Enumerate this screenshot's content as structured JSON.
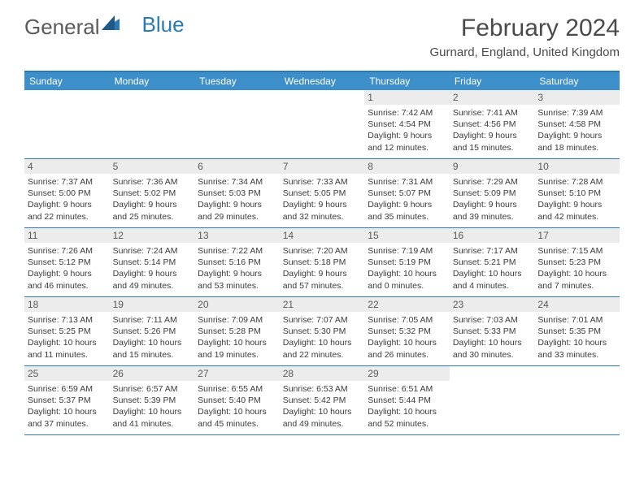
{
  "logo": {
    "text1": "General",
    "text2": "Blue"
  },
  "title": "February 2024",
  "location": "Gurnard, England, United Kingdom",
  "colors": {
    "header_bar": "#3d8fc9",
    "border": "#2a7ab8",
    "daynum_bg": "#ececec",
    "text_dark": "#4a4a4a",
    "text_body": "#3a3a3a"
  },
  "weekdays": [
    "Sunday",
    "Monday",
    "Tuesday",
    "Wednesday",
    "Thursday",
    "Friday",
    "Saturday"
  ],
  "weeks": [
    [
      null,
      null,
      null,
      null,
      {
        "n": "1",
        "sunrise": "7:42 AM",
        "sunset": "4:54 PM",
        "dl1": "Daylight: 9 hours",
        "dl2": "and 12 minutes."
      },
      {
        "n": "2",
        "sunrise": "7:41 AM",
        "sunset": "4:56 PM",
        "dl1": "Daylight: 9 hours",
        "dl2": "and 15 minutes."
      },
      {
        "n": "3",
        "sunrise": "7:39 AM",
        "sunset": "4:58 PM",
        "dl1": "Daylight: 9 hours",
        "dl2": "and 18 minutes."
      }
    ],
    [
      {
        "n": "4",
        "sunrise": "7:37 AM",
        "sunset": "5:00 PM",
        "dl1": "Daylight: 9 hours",
        "dl2": "and 22 minutes."
      },
      {
        "n": "5",
        "sunrise": "7:36 AM",
        "sunset": "5:02 PM",
        "dl1": "Daylight: 9 hours",
        "dl2": "and 25 minutes."
      },
      {
        "n": "6",
        "sunrise": "7:34 AM",
        "sunset": "5:03 PM",
        "dl1": "Daylight: 9 hours",
        "dl2": "and 29 minutes."
      },
      {
        "n": "7",
        "sunrise": "7:33 AM",
        "sunset": "5:05 PM",
        "dl1": "Daylight: 9 hours",
        "dl2": "and 32 minutes."
      },
      {
        "n": "8",
        "sunrise": "7:31 AM",
        "sunset": "5:07 PM",
        "dl1": "Daylight: 9 hours",
        "dl2": "and 35 minutes."
      },
      {
        "n": "9",
        "sunrise": "7:29 AM",
        "sunset": "5:09 PM",
        "dl1": "Daylight: 9 hours",
        "dl2": "and 39 minutes."
      },
      {
        "n": "10",
        "sunrise": "7:28 AM",
        "sunset": "5:10 PM",
        "dl1": "Daylight: 9 hours",
        "dl2": "and 42 minutes."
      }
    ],
    [
      {
        "n": "11",
        "sunrise": "7:26 AM",
        "sunset": "5:12 PM",
        "dl1": "Daylight: 9 hours",
        "dl2": "and 46 minutes."
      },
      {
        "n": "12",
        "sunrise": "7:24 AM",
        "sunset": "5:14 PM",
        "dl1": "Daylight: 9 hours",
        "dl2": "and 49 minutes."
      },
      {
        "n": "13",
        "sunrise": "7:22 AM",
        "sunset": "5:16 PM",
        "dl1": "Daylight: 9 hours",
        "dl2": "and 53 minutes."
      },
      {
        "n": "14",
        "sunrise": "7:20 AM",
        "sunset": "5:18 PM",
        "dl1": "Daylight: 9 hours",
        "dl2": "and 57 minutes."
      },
      {
        "n": "15",
        "sunrise": "7:19 AM",
        "sunset": "5:19 PM",
        "dl1": "Daylight: 10 hours",
        "dl2": "and 0 minutes."
      },
      {
        "n": "16",
        "sunrise": "7:17 AM",
        "sunset": "5:21 PM",
        "dl1": "Daylight: 10 hours",
        "dl2": "and 4 minutes."
      },
      {
        "n": "17",
        "sunrise": "7:15 AM",
        "sunset": "5:23 PM",
        "dl1": "Daylight: 10 hours",
        "dl2": "and 7 minutes."
      }
    ],
    [
      {
        "n": "18",
        "sunrise": "7:13 AM",
        "sunset": "5:25 PM",
        "dl1": "Daylight: 10 hours",
        "dl2": "and 11 minutes."
      },
      {
        "n": "19",
        "sunrise": "7:11 AM",
        "sunset": "5:26 PM",
        "dl1": "Daylight: 10 hours",
        "dl2": "and 15 minutes."
      },
      {
        "n": "20",
        "sunrise": "7:09 AM",
        "sunset": "5:28 PM",
        "dl1": "Daylight: 10 hours",
        "dl2": "and 19 minutes."
      },
      {
        "n": "21",
        "sunrise": "7:07 AM",
        "sunset": "5:30 PM",
        "dl1": "Daylight: 10 hours",
        "dl2": "and 22 minutes."
      },
      {
        "n": "22",
        "sunrise": "7:05 AM",
        "sunset": "5:32 PM",
        "dl1": "Daylight: 10 hours",
        "dl2": "and 26 minutes."
      },
      {
        "n": "23",
        "sunrise": "7:03 AM",
        "sunset": "5:33 PM",
        "dl1": "Daylight: 10 hours",
        "dl2": "and 30 minutes."
      },
      {
        "n": "24",
        "sunrise": "7:01 AM",
        "sunset": "5:35 PM",
        "dl1": "Daylight: 10 hours",
        "dl2": "and 33 minutes."
      }
    ],
    [
      {
        "n": "25",
        "sunrise": "6:59 AM",
        "sunset": "5:37 PM",
        "dl1": "Daylight: 10 hours",
        "dl2": "and 37 minutes."
      },
      {
        "n": "26",
        "sunrise": "6:57 AM",
        "sunset": "5:39 PM",
        "dl1": "Daylight: 10 hours",
        "dl2": "and 41 minutes."
      },
      {
        "n": "27",
        "sunrise": "6:55 AM",
        "sunset": "5:40 PM",
        "dl1": "Daylight: 10 hours",
        "dl2": "and 45 minutes."
      },
      {
        "n": "28",
        "sunrise": "6:53 AM",
        "sunset": "5:42 PM",
        "dl1": "Daylight: 10 hours",
        "dl2": "and 49 minutes."
      },
      {
        "n": "29",
        "sunrise": "6:51 AM",
        "sunset": "5:44 PM",
        "dl1": "Daylight: 10 hours",
        "dl2": "and 52 minutes."
      },
      null,
      null
    ]
  ]
}
